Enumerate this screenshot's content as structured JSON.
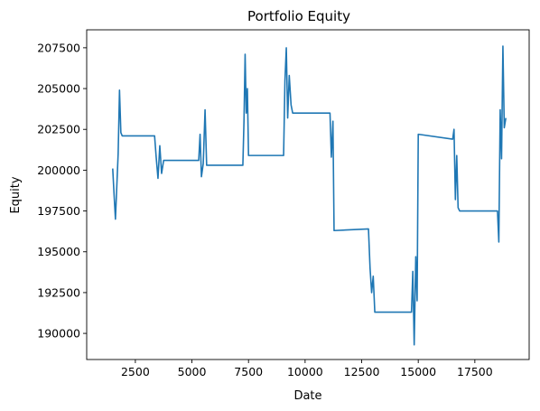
{
  "chart_data": {
    "type": "line",
    "title": "Portfolio Equity",
    "xlabel": "Date",
    "ylabel": "Equity",
    "xlim": [
      350,
      19900
    ],
    "ylim": [
      188400,
      208600
    ],
    "xticks": [
      2500,
      5000,
      7500,
      10000,
      12500,
      15000,
      17500
    ],
    "yticks": [
      190000,
      192500,
      195000,
      197500,
      200000,
      202500,
      205000,
      207500
    ],
    "grid": false,
    "color": "#1f77b4",
    "series": [
      {
        "x": [
          1500,
          1560,
          1620,
          1680,
          1740,
          1800,
          1860,
          1920,
          3350,
          3420,
          3500,
          3580,
          3660,
          3750,
          3850,
          5300,
          5360,
          5420,
          5500,
          5580,
          5650,
          7250,
          7300,
          7350,
          7400,
          7450,
          7500,
          9050,
          9110,
          9170,
          9230,
          9300,
          9380,
          9450,
          11100,
          11160,
          11230,
          11280,
          12800,
          12870,
          12940,
          13010,
          13080,
          13180,
          14700,
          14760,
          14820,
          14890,
          14950,
          15000,
          16520,
          16580,
          16640,
          16700,
          16760,
          16830,
          18500,
          18560,
          18620,
          18680,
          18740,
          18800,
          18870
        ],
        "y": [
          200100,
          198500,
          197000,
          199000,
          201000,
          204900,
          202300,
          202100,
          202100,
          200800,
          199500,
          201500,
          199800,
          200600,
          200600,
          200600,
          202200,
          199600,
          200400,
          203700,
          200300,
          200300,
          203000,
          207100,
          203500,
          205000,
          200900,
          200900,
          205500,
          207500,
          203200,
          205800,
          204000,
          203500,
          203500,
          200800,
          203000,
          196300,
          196400,
          194000,
          192500,
          193500,
          191300,
          191300,
          191300,
          193800,
          189300,
          194700,
          192000,
          202200,
          201900,
          202500,
          198200,
          200900,
          197700,
          197500,
          197500,
          195600,
          203700,
          200700,
          207600,
          202600,
          203200
        ]
      }
    ]
  }
}
